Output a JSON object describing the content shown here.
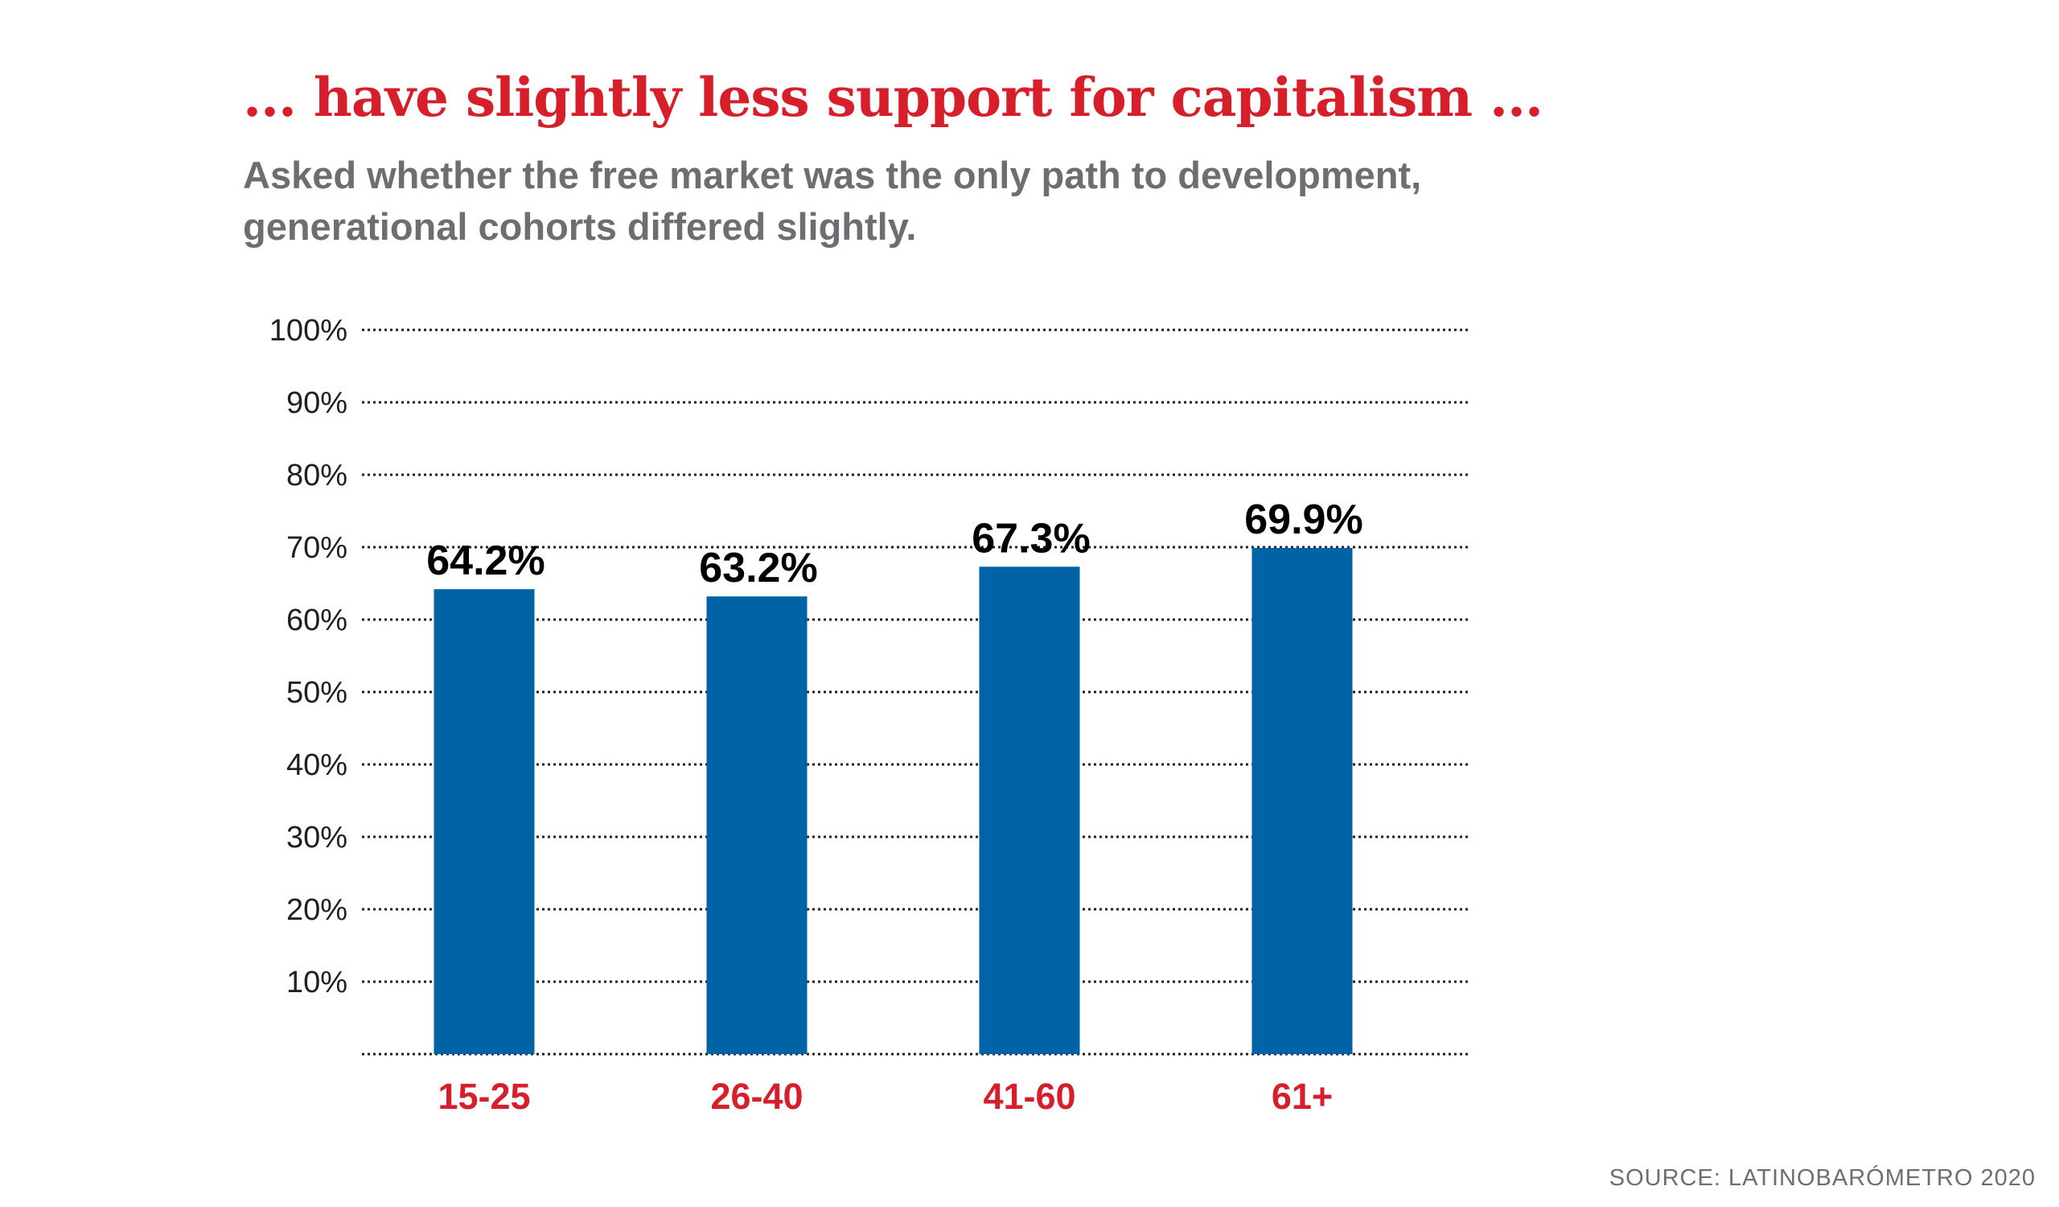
{
  "chart_data": {
    "type": "bar",
    "title": "... have slightly less support for capitalism ...",
    "subtitle": "Asked whether the free market was the only path to development, generational cohorts differed slightly.",
    "categories": [
      "15-25",
      "26-40",
      "41-60",
      "61+"
    ],
    "values": [
      64.2,
      63.2,
      67.3,
      69.9
    ],
    "value_labels": [
      "64.2%",
      "63.2%",
      "67.3%",
      "69.9%"
    ],
    "yticks": [
      {
        "value": 10,
        "label": "10%"
      },
      {
        "value": 20,
        "label": "20%"
      },
      {
        "value": 30,
        "label": "30%"
      },
      {
        "value": 40,
        "label": "40%"
      },
      {
        "value": 50,
        "label": "50%"
      },
      {
        "value": 60,
        "label": "60%"
      },
      {
        "value": 70,
        "label": "70%"
      },
      {
        "value": 80,
        "label": "80%"
      },
      {
        "value": 90,
        "label": "90%"
      },
      {
        "value": 100,
        "label": "100%"
      }
    ],
    "ylim": [
      0,
      100
    ],
    "grid": true,
    "grid_style": "dotted",
    "xlabel": "",
    "ylabel": "",
    "source": "SOURCE: LATINOBARÓMETRO 2020",
    "colors": {
      "bar": "#0063a6",
      "title": "#d71f2b",
      "category_label": "#d71f2b",
      "subtitle": "#6d6e71",
      "tick_label": "#231f20",
      "value_label": "#000000",
      "grid": "#231f20"
    }
  }
}
